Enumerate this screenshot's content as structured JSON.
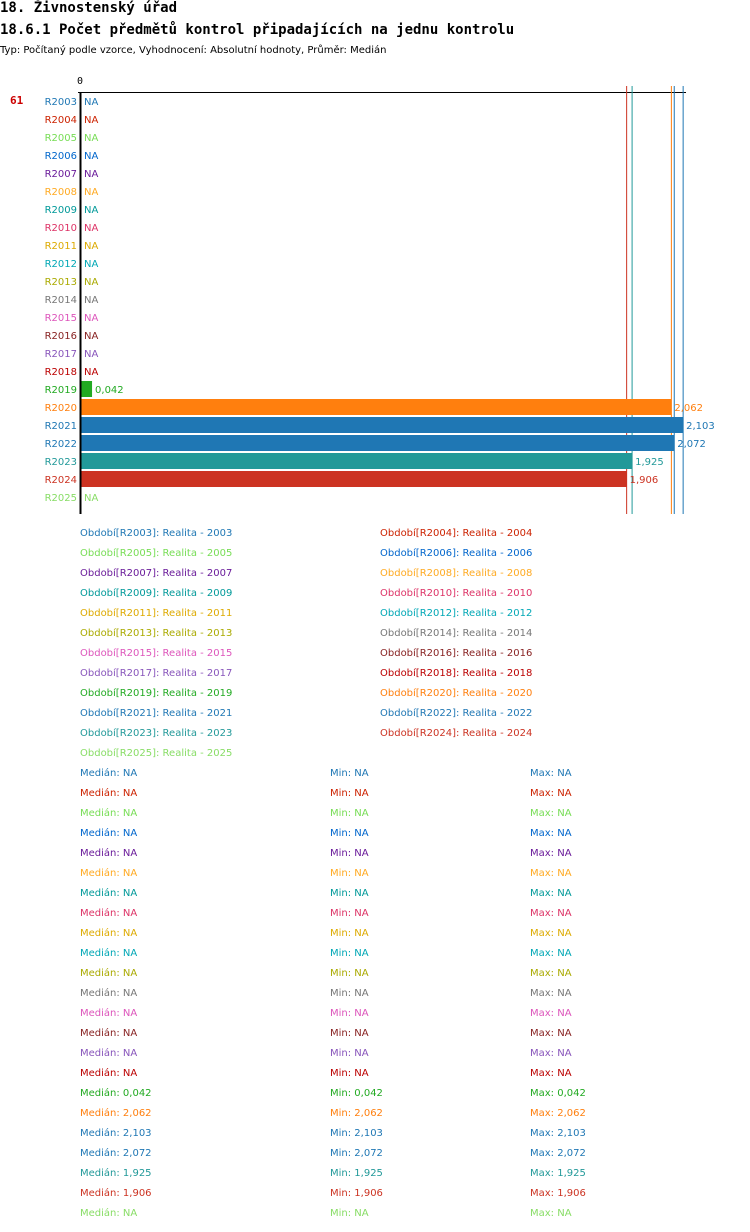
{
  "page": {
    "title": "18. Živnostenský úřad",
    "subtitle": "18.6.1 Počet předmětů kontrol připadajících na jednu kontrolu",
    "type_line": "Typ: Počítaný podle vzorce, Vyhodnocení: Absolutní hodnoty, Průměr: Medián"
  },
  "chart_data": {
    "type": "bar",
    "orientation": "horizontal",
    "side_label": "61",
    "side_label_color": "#cc0000",
    "axis_zero_label": "0",
    "xlim": [
      0,
      2.15
    ],
    "categories": [
      "R2003",
      "R2004",
      "R2005",
      "R2006",
      "R2007",
      "R2008",
      "R2009",
      "R2010",
      "R2011",
      "R2012",
      "R2013",
      "R2014",
      "R2015",
      "R2016",
      "R2017",
      "R2018",
      "R2019",
      "R2020",
      "R2021",
      "R2022",
      "R2023",
      "R2024",
      "R2025"
    ],
    "values": [
      null,
      null,
      null,
      null,
      null,
      null,
      null,
      null,
      null,
      null,
      null,
      null,
      null,
      null,
      null,
      null,
      0.042,
      2.062,
      2.103,
      2.072,
      1.925,
      1.906,
      null
    ],
    "value_labels": [
      "NA",
      "NA",
      "NA",
      "NA",
      "NA",
      "NA",
      "NA",
      "NA",
      "NA",
      "NA",
      "NA",
      "NA",
      "NA",
      "NA",
      "NA",
      "NA",
      "0,042",
      "2,062",
      "2,103",
      "2,072",
      "1,925",
      "1,906",
      "NA"
    ],
    "colors": [
      "#1f77b4",
      "#cc2200",
      "#77dd55",
      "#0066cc",
      "#6a1b9a",
      "#ffaa22",
      "#009999",
      "#dd3366",
      "#ddaa00",
      "#00a7b5",
      "#aaaa00",
      "#777777",
      "#dd55bb",
      "#882222",
      "#8855bb",
      "#bb0000",
      "#22aa22",
      "#ff7f0e",
      "#1f77b4",
      "#1f77b4",
      "#229999",
      "#cc3322",
      "#88dd66"
    ],
    "reference_lines": [
      {
        "value": 1.906,
        "color": "#cc3322"
      },
      {
        "value": 1.925,
        "color": "#229999"
      },
      {
        "value": 2.062,
        "color": "#ff7f0e"
      },
      {
        "value": 2.072,
        "color": "#1f77b4"
      },
      {
        "value": 2.103,
        "color": "#1f77b4"
      }
    ]
  },
  "legend": [
    {
      "label": "Období[R2003]: Realita - 2003",
      "color": "#1f77b4"
    },
    {
      "label": "Období[R2004]: Realita - 2004",
      "color": "#cc2200"
    },
    {
      "label": "Období[R2005]: Realita - 2005",
      "color": "#77dd55"
    },
    {
      "label": "Období[R2006]: Realita - 2006",
      "color": "#0066cc"
    },
    {
      "label": "Období[R2007]: Realita - 2007",
      "color": "#6a1b9a"
    },
    {
      "label": "Období[R2008]: Realita - 2008",
      "color": "#ffaa22"
    },
    {
      "label": "Období[R2009]: Realita - 2009",
      "color": "#009999"
    },
    {
      "label": "Období[R2010]: Realita - 2010",
      "color": "#dd3366"
    },
    {
      "label": "Období[R2011]: Realita - 2011",
      "color": "#ddaa00"
    },
    {
      "label": "Období[R2012]: Realita - 2012",
      "color": "#00a7b5"
    },
    {
      "label": "Období[R2013]: Realita - 2013",
      "color": "#aaaa00"
    },
    {
      "label": "Období[R2014]: Realita - 2014",
      "color": "#777777"
    },
    {
      "label": "Období[R2015]: Realita - 2015",
      "color": "#dd55bb"
    },
    {
      "label": "Období[R2016]: Realita - 2016",
      "color": "#882222"
    },
    {
      "label": "Období[R2017]: Realita - 2017",
      "color": "#8855bb"
    },
    {
      "label": "Období[R2018]: Realita - 2018",
      "color": "#bb0000"
    },
    {
      "label": "Období[R2019]: Realita - 2019",
      "color": "#22aa22"
    },
    {
      "label": "Období[R2020]: Realita - 2020",
      "color": "#ff7f0e"
    },
    {
      "label": "Období[R2021]: Realita - 2021",
      "color": "#1f77b4"
    },
    {
      "label": "Období[R2022]: Realita - 2022",
      "color": "#1f77b4"
    },
    {
      "label": "Období[R2023]: Realita - 2023",
      "color": "#229999"
    },
    {
      "label": "Období[R2024]: Realita - 2024",
      "color": "#cc3322"
    },
    {
      "label": "Období[R2025]: Realita - 2025",
      "color": "#88dd66"
    }
  ],
  "stats": [
    {
      "median": "Medián: NA",
      "min": "Min: NA",
      "max": "Max: NA",
      "color": "#1f77b4"
    },
    {
      "median": "Medián: NA",
      "min": "Min: NA",
      "max": "Max: NA",
      "color": "#cc2200"
    },
    {
      "median": "Medián: NA",
      "min": "Min: NA",
      "max": "Max: NA",
      "color": "#77dd55"
    },
    {
      "median": "Medián: NA",
      "min": "Min: NA",
      "max": "Max: NA",
      "color": "#0066cc"
    },
    {
      "median": "Medián: NA",
      "min": "Min: NA",
      "max": "Max: NA",
      "color": "#6a1b9a"
    },
    {
      "median": "Medián: NA",
      "min": "Min: NA",
      "max": "Max: NA",
      "color": "#ffaa22"
    },
    {
      "median": "Medián: NA",
      "min": "Min: NA",
      "max": "Max: NA",
      "color": "#009999"
    },
    {
      "median": "Medián: NA",
      "min": "Min: NA",
      "max": "Max: NA",
      "color": "#dd3366"
    },
    {
      "median": "Medián: NA",
      "min": "Min: NA",
      "max": "Max: NA",
      "color": "#ddaa00"
    },
    {
      "median": "Medián: NA",
      "min": "Min: NA",
      "max": "Max: NA",
      "color": "#00a7b5"
    },
    {
      "median": "Medián: NA",
      "min": "Min: NA",
      "max": "Max: NA",
      "color": "#aaaa00"
    },
    {
      "median": "Medián: NA",
      "min": "Min: NA",
      "max": "Max: NA",
      "color": "#777777"
    },
    {
      "median": "Medián: NA",
      "min": "Min: NA",
      "max": "Max: NA",
      "color": "#dd55bb"
    },
    {
      "median": "Medián: NA",
      "min": "Min: NA",
      "max": "Max: NA",
      "color": "#882222"
    },
    {
      "median": "Medián: NA",
      "min": "Min: NA",
      "max": "Max: NA",
      "color": "#8855bb"
    },
    {
      "median": "Medián: NA",
      "min": "Min: NA",
      "max": "Max: NA",
      "color": "#bb0000"
    },
    {
      "median": "Medián: 0,042",
      "min": "Min: 0,042",
      "max": "Max: 0,042",
      "color": "#22aa22"
    },
    {
      "median": "Medián: 2,062",
      "min": "Min: 2,062",
      "max": "Max: 2,062",
      "color": "#ff7f0e"
    },
    {
      "median": "Medián: 2,103",
      "min": "Min: 2,103",
      "max": "Max: 2,103",
      "color": "#1f77b4"
    },
    {
      "median": "Medián: 2,072",
      "min": "Min: 2,072",
      "max": "Max: 2,072",
      "color": "#1f77b4"
    },
    {
      "median": "Medián: 1,925",
      "min": "Min: 1,925",
      "max": "Max: 1,925",
      "color": "#229999"
    },
    {
      "median": "Medián: 1,906",
      "min": "Min: 1,906",
      "max": "Max: 1,906",
      "color": "#cc3322"
    },
    {
      "median": "Medián: NA",
      "min": "Min: NA",
      "max": "Max: NA",
      "color": "#88dd66"
    }
  ]
}
